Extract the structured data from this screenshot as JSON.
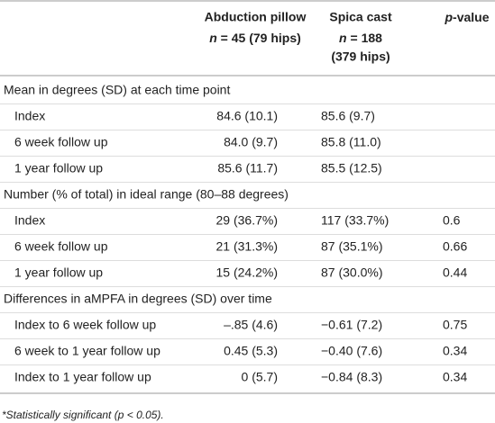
{
  "header": {
    "col1": {
      "title": "Abduction pillow",
      "n": "n",
      "n_text": " = 45 (79 hips)"
    },
    "col2": {
      "title": "Spica cast",
      "n": "n",
      "n_text": " = 188",
      "extra": "(379 hips)"
    },
    "col3": {
      "p": "p",
      "rest": "-value"
    }
  },
  "sections": [
    {
      "heading": "Mean in degrees (SD) at each time point",
      "rows": [
        [
          "Index",
          "84.6 (10.1)",
          "85.6 (9.7)"
        ],
        [
          "6 week follow up",
          "84.0 (9.7)",
          "85.8 (11.0)"
        ],
        [
          "1 year follow up",
          "85.6 (11.7)",
          "85.5 (12.5)"
        ]
      ]
    },
    {
      "heading": "Number (% of total) in ideal range (80–88 degrees)",
      "rows": [
        [
          "Index",
          "29 (36.7%)",
          "117 (33.7%)",
          "0.6"
        ],
        [
          "6 week follow up",
          "21 (31.3%)",
          "87 (35.1%)",
          "0.66"
        ],
        [
          "1 year follow up",
          "15 (24.2%)",
          "87 (30.0%)",
          "0.44"
        ]
      ]
    },
    {
      "heading": "Differences in aMPFA in degrees (SD) over time",
      "rows": [
        [
          "Index to 6 week follow up",
          "–.85 (4.6)",
          "−0.61 (7.2)",
          "0.75"
        ],
        [
          "6 week to 1 year follow up",
          "0.45 (5.3)",
          "−0.40 (7.6)",
          "0.34"
        ],
        [
          "Index to 1 year follow up",
          "0 (5.7)",
          "−0.84 (8.3)",
          "0.34"
        ]
      ]
    }
  ],
  "footnote": "*Statistically significant (p < 0.05)."
}
